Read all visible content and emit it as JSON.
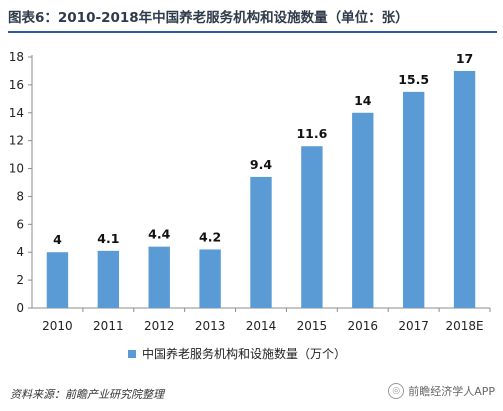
{
  "title": "图表6：2010-2018年中国养老服务机构和设施数量（单位：张）",
  "source": "资料来源：前瞻产业研究院整理",
  "brand": "前瞻经济学人APP",
  "colors": {
    "bar": "#5b9bd5",
    "axis": "#8c8c8c",
    "rule": "#2c5aa0"
  },
  "chart_data": {
    "type": "bar",
    "categories": [
      "2010",
      "2011",
      "2012",
      "2013",
      "2014",
      "2015",
      "2016",
      "2017",
      "2018E"
    ],
    "series": [
      {
        "name": "中国养老服务机构和设施数量（万个）",
        "values": [
          4,
          4.1,
          4.4,
          4.2,
          9.4,
          11.6,
          14,
          15.5,
          17
        ]
      }
    ],
    "data_labels": [
      "4",
      "4.1",
      "4.4",
      "4.2",
      "9.4",
      "11.6",
      "14",
      "15.5",
      "17"
    ],
    "ylim": [
      0,
      18
    ],
    "yticks": [
      0,
      2,
      4,
      6,
      8,
      10,
      12,
      14,
      16,
      18
    ],
    "legend": "bottom",
    "grid": false
  }
}
